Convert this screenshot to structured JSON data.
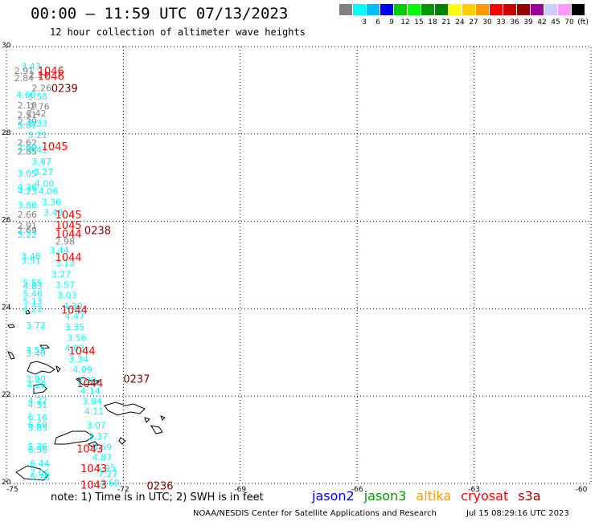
{
  "header": {
    "title": "00:00 – 11:59 UTC 07/13/2023",
    "subtitle": "12 hour collection of altimeter wave heights"
  },
  "legend": {
    "swatches": [
      {
        "color": "#808080",
        "label": ""
      },
      {
        "color": "#00ffff",
        "label": "3"
      },
      {
        "color": "#00bfff",
        "label": "6"
      },
      {
        "color": "#0000ff",
        "label": "9"
      },
      {
        "color": "#00cc00",
        "label": "12"
      },
      {
        "color": "#00ff00",
        "label": "15"
      },
      {
        "color": "#009900",
        "label": "18"
      },
      {
        "color": "#008000",
        "label": "21"
      },
      {
        "color": "#ffff00",
        "label": "24"
      },
      {
        "color": "#ffcc00",
        "label": "27"
      },
      {
        "color": "#ff9900",
        "label": "30"
      },
      {
        "color": "#ff0000",
        "label": "33"
      },
      {
        "color": "#cc0000",
        "label": "36"
      },
      {
        "color": "#990000",
        "label": "39"
      },
      {
        "color": "#990099",
        "label": "42"
      },
      {
        "color": "#ccccff",
        "label": "45"
      },
      {
        "color": "#ff99ff",
        "label": "70"
      },
      {
        "color": "#000000",
        "label": "(ft)"
      }
    ]
  },
  "axes": {
    "lon_ticks": [
      "-75",
      "-72",
      "-69",
      "-66",
      "-63",
      "-60"
    ],
    "lat_ticks": [
      "30",
      "28",
      "26",
      "24",
      "22",
      "20"
    ]
  },
  "observations": [
    {
      "lon": -74.62,
      "lat": 29.55,
      "text": "3.43",
      "color": "#00ffff"
    },
    {
      "lon": -74.8,
      "lat": 29.45,
      "text": "2.91",
      "color": "#808080"
    },
    {
      "lon": -74.42,
      "lat": 29.36,
      "text": "2.24",
      "color": "#808080"
    },
    {
      "lon": -74.8,
      "lat": 29.28,
      "text": "2.84",
      "color": "#808080"
    },
    {
      "lon": -74.35,
      "lat": 29.05,
      "text": "2.26",
      "color": "#808080"
    },
    {
      "lon": -74.75,
      "lat": 28.9,
      "text": "4.60",
      "color": "#00ffff"
    },
    {
      "lon": -74.45,
      "lat": 28.86,
      "text": "3.58",
      "color": "#00ffff"
    },
    {
      "lon": -74.72,
      "lat": 28.66,
      "text": "2.10",
      "color": "#808080"
    },
    {
      "lon": -74.4,
      "lat": 28.63,
      "text": "2.76",
      "color": "#808080"
    },
    {
      "lon": -74.72,
      "lat": 28.44,
      "text": "2.51",
      "color": "#808080"
    },
    {
      "lon": -74.48,
      "lat": 28.47,
      "text": "2.42",
      "color": "#808080"
    },
    {
      "lon": -74.72,
      "lat": 28.28,
      "text": "2.39",
      "color": "#808080"
    },
    {
      "lon": -74.72,
      "lat": 28.2,
      "text": "3.07",
      "color": "#00ffff"
    },
    {
      "lon": -74.45,
      "lat": 28.24,
      "text": "3.33",
      "color": "#00ffff"
    },
    {
      "lon": -74.45,
      "lat": 27.98,
      "text": "3.21",
      "color": "#00ffff"
    },
    {
      "lon": -74.72,
      "lat": 27.8,
      "text": "2.62",
      "color": "#808080"
    },
    {
      "lon": -74.72,
      "lat": 27.7,
      "text": "2.69",
      "color": "#00ffff"
    },
    {
      "lon": -74.72,
      "lat": 27.6,
      "text": "2.85",
      "color": "#808080"
    },
    {
      "lon": -74.45,
      "lat": 27.64,
      "text": "3.41",
      "color": "#00ffff"
    },
    {
      "lon": -74.35,
      "lat": 27.37,
      "text": "3.87",
      "color": "#00ffff"
    },
    {
      "lon": -74.72,
      "lat": 27.1,
      "text": "3.05",
      "color": "#00ffff"
    },
    {
      "lon": -74.3,
      "lat": 27.13,
      "text": "3.27",
      "color": "#00ffff"
    },
    {
      "lon": -74.28,
      "lat": 26.87,
      "text": "4.00",
      "color": "#00ffff"
    },
    {
      "lon": -74.72,
      "lat": 26.78,
      "text": "4.36",
      "color": "#00ffff"
    },
    {
      "lon": -74.72,
      "lat": 26.69,
      "text": "4.23",
      "color": "#00ffff"
    },
    {
      "lon": -74.18,
      "lat": 26.69,
      "text": "4.06",
      "color": "#00ffff"
    },
    {
      "lon": -74.1,
      "lat": 26.44,
      "text": "3.36",
      "color": "#00ffff"
    },
    {
      "lon": -74.72,
      "lat": 26.37,
      "text": "3.86",
      "color": "#00ffff"
    },
    {
      "lon": -74.05,
      "lat": 26.2,
      "text": "3.48",
      "color": "#00ffff"
    },
    {
      "lon": -74.72,
      "lat": 26.16,
      "text": "2.66",
      "color": "#808080"
    },
    {
      "lon": -74.72,
      "lat": 25.9,
      "text": "2.91",
      "color": "#808080"
    },
    {
      "lon": -74.72,
      "lat": 25.8,
      "text": "2.69",
      "color": "#808080"
    },
    {
      "lon": -74.72,
      "lat": 25.7,
      "text": "3.22",
      "color": "#00ffff"
    },
    {
      "lon": -73.75,
      "lat": 25.54,
      "text": "2.98",
      "color": "#808080"
    },
    {
      "lon": -73.9,
      "lat": 25.34,
      "text": "3.44",
      "color": "#00ffff"
    },
    {
      "lon": -74.62,
      "lat": 25.2,
      "text": "3.48",
      "color": "#00ffff"
    },
    {
      "lon": -74.62,
      "lat": 25.1,
      "text": "3.51",
      "color": "#00ffff"
    },
    {
      "lon": -73.75,
      "lat": 25.05,
      "text": "3.13",
      "color": "#00ffff"
    },
    {
      "lon": -73.85,
      "lat": 24.79,
      "text": "3.27",
      "color": "#00ffff"
    },
    {
      "lon": -74.58,
      "lat": 24.6,
      "text": "5.55",
      "color": "#00ffff"
    },
    {
      "lon": -74.58,
      "lat": 24.52,
      "text": "4.83",
      "color": "#00ffff"
    },
    {
      "lon": -73.75,
      "lat": 24.55,
      "text": "3.57",
      "color": "#00ffff"
    },
    {
      "lon": -74.58,
      "lat": 24.35,
      "text": "5.46",
      "color": "#00ffff"
    },
    {
      "lon": -73.7,
      "lat": 24.31,
      "text": "3.03",
      "color": "#00ffff"
    },
    {
      "lon": -74.58,
      "lat": 24.17,
      "text": "5.13",
      "color": "#00ffff"
    },
    {
      "lon": -73.55,
      "lat": 24.06,
      "text": "4.39",
      "color": "#00ffff"
    },
    {
      "lon": -74.58,
      "lat": 24.0,
      "text": "4.22",
      "color": "#00ffff"
    },
    {
      "lon": -73.5,
      "lat": 23.83,
      "text": "4.47",
      "color": "#00ffff"
    },
    {
      "lon": -74.5,
      "lat": 23.62,
      "text": "3.72",
      "color": "#00ffff"
    },
    {
      "lon": -73.5,
      "lat": 23.58,
      "text": "3.35",
      "color": "#00ffff"
    },
    {
      "lon": -73.45,
      "lat": 23.34,
      "text": "3.56",
      "color": "#00ffff"
    },
    {
      "lon": -73.5,
      "lat": 23.1,
      "text": "4.03",
      "color": "#00ffff"
    },
    {
      "lon": -74.5,
      "lat": 23.05,
      "text": "3.58",
      "color": "#00ffff"
    },
    {
      "lon": -74.5,
      "lat": 22.98,
      "text": "3.40",
      "color": "#00ffff"
    },
    {
      "lon": -73.4,
      "lat": 22.85,
      "text": "3.34",
      "color": "#00ffff"
    },
    {
      "lon": -73.3,
      "lat": 22.61,
      "text": "4.09",
      "color": "#00ffff"
    },
    {
      "lon": -73.2,
      "lat": 22.36,
      "text": "3.80",
      "color": "#00ffff"
    },
    {
      "lon": -74.5,
      "lat": 22.4,
      "text": "3.90",
      "color": "#00ffff"
    },
    {
      "lon": -74.48,
      "lat": 22.26,
      "text": "4.28",
      "color": "#00ffff"
    },
    {
      "lon": -73.1,
      "lat": 22.12,
      "text": "4.14",
      "color": "#00ffff"
    },
    {
      "lon": -74.45,
      "lat": 21.9,
      "text": "4.22",
      "color": "#00ffff"
    },
    {
      "lon": -73.05,
      "lat": 21.88,
      "text": "3.94",
      "color": "#00ffff"
    },
    {
      "lon": -74.45,
      "lat": 21.8,
      "text": "4.31",
      "color": "#00ffff"
    },
    {
      "lon": -73.0,
      "lat": 21.65,
      "text": "4.11",
      "color": "#00ffff"
    },
    {
      "lon": -74.45,
      "lat": 21.52,
      "text": "6.16",
      "color": "#00ffff"
    },
    {
      "lon": -74.45,
      "lat": 21.34,
      "text": "6.69",
      "color": "#00ffff"
    },
    {
      "lon": -74.45,
      "lat": 21.28,
      "text": "5.85",
      "color": "#00ffff"
    },
    {
      "lon": -72.95,
      "lat": 21.33,
      "text": "3.07",
      "color": "#00ffff"
    },
    {
      "lon": -72.9,
      "lat": 21.08,
      "text": "3.37",
      "color": "#00ffff"
    },
    {
      "lon": -74.45,
      "lat": 20.85,
      "text": "5.36",
      "color": "#00ffff"
    },
    {
      "lon": -74.45,
      "lat": 20.77,
      "text": "6.56",
      "color": "#00ffff"
    },
    {
      "lon": -72.8,
      "lat": 20.84,
      "text": "4.69",
      "color": "#00ffff"
    },
    {
      "lon": -72.8,
      "lat": 20.6,
      "text": "4.87",
      "color": "#00ffff"
    },
    {
      "lon": -74.4,
      "lat": 20.46,
      "text": "6.44",
      "color": "#00ffff"
    },
    {
      "lon": -72.7,
      "lat": 20.36,
      "text": "5.95",
      "color": "#00ffff"
    },
    {
      "lon": -74.4,
      "lat": 20.25,
      "text": "7.06",
      "color": "#00ffff"
    },
    {
      "lon": -72.65,
      "lat": 20.22,
      "text": "7.27",
      "color": "#00ffff"
    },
    {
      "lon": -74.4,
      "lat": 20.15,
      "text": "5.76",
      "color": "#00ffff"
    },
    {
      "lon": -72.6,
      "lat": 20.02,
      "text": "7.60",
      "color": "#00ffff"
    }
  ],
  "time_labels": [
    {
      "lon": -74.2,
      "lat": 29.45,
      "text": "1046",
      "color": "#ff0000"
    },
    {
      "lon": -74.2,
      "lat": 29.33,
      "text": "1046",
      "color": "#ff0000"
    },
    {
      "lon": -73.85,
      "lat": 29.05,
      "text": "0239",
      "color": "#800000"
    },
    {
      "lon": -74.1,
      "lat": 27.72,
      "text": "1045",
      "color": "#ff0000"
    },
    {
      "lon": -73.75,
      "lat": 26.16,
      "text": "1045",
      "color": "#ff0000"
    },
    {
      "lon": -73.75,
      "lat": 25.92,
      "text": "1045",
      "color": "#ff0000"
    },
    {
      "lon": -73.0,
      "lat": 25.8,
      "text": "0238",
      "color": "#800000"
    },
    {
      "lon": -73.75,
      "lat": 25.72,
      "text": "1044",
      "color": "#ff0000"
    },
    {
      "lon": -73.75,
      "lat": 25.18,
      "text": "1044",
      "color": "#ff0000"
    },
    {
      "lon": -73.6,
      "lat": 23.98,
      "text": "1044",
      "color": "#ff0000"
    },
    {
      "lon": -73.4,
      "lat": 23.04,
      "text": "1044",
      "color": "#ff0000"
    },
    {
      "lon": -72.0,
      "lat": 22.4,
      "text": "0237",
      "color": "#800000"
    },
    {
      "lon": -73.2,
      "lat": 22.3,
      "text": "1044",
      "color": "#ff0000"
    },
    {
      "lon": -73.2,
      "lat": 20.8,
      "text": "1043",
      "color": "#ff0000"
    },
    {
      "lon": -73.1,
      "lat": 20.35,
      "text": "1043",
      "color": "#ff0000"
    },
    {
      "lon": -73.1,
      "lat": 19.97,
      "text": "1043",
      "color": "#ff0000"
    },
    {
      "lon": -71.4,
      "lat": 19.95,
      "text": "0236",
      "color": "#800000"
    }
  ],
  "footer": {
    "note": "note: 1) Time is in UTC; 2) SWH is in feet",
    "satellites": [
      {
        "name": "jason2",
        "color": "#0000ff"
      },
      {
        "name": "jason3",
        "color": "#009900"
      },
      {
        "name": "altika",
        "color": "#ff9900"
      },
      {
        "name": "cryosat",
        "color": "#ff0000"
      },
      {
        "name": "s3a",
        "color": "#990000"
      }
    ],
    "credit": "NOAA/NESDIS Center for Satellite Applications and Research",
    "timestamp": "Jul 15 08:29:16 UTC 2023"
  }
}
